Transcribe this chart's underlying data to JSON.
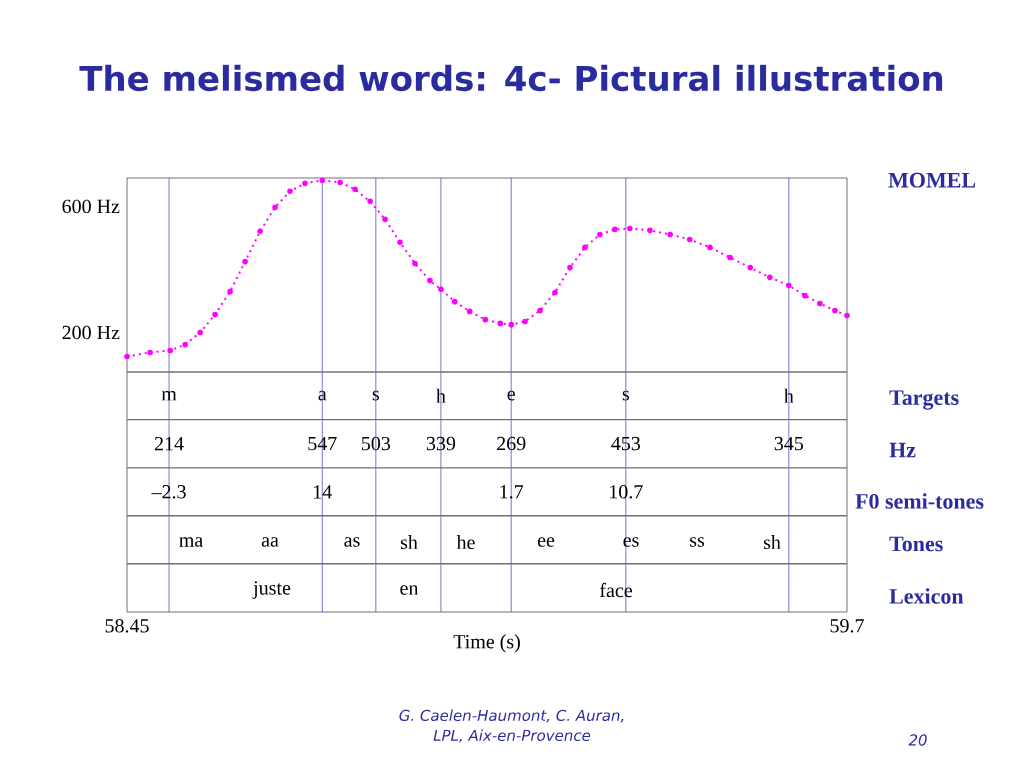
{
  "chart_data": {
    "type": "line",
    "title": "The melismed words: 4c- Pictural illustration",
    "xlabel": "Time (s)",
    "xlim": [
      58.45,
      59.7
    ],
    "ylim": [
      -686,
      690
    ],
    "xticks": [
      58.45,
      59.7
    ],
    "yticks": [
      {
        "value": 200,
        "label": "200 Hz"
      },
      {
        "value": 600,
        "label": "600 Hz"
      }
    ],
    "marker": "circle",
    "line_style": "dotted",
    "series": [
      {
        "name": "MOMEL",
        "color": "#ff00ff",
        "x": [
          58.45,
          58.49,
          58.525,
          58.551,
          58.577,
          58.603,
          58.629,
          58.655,
          58.681,
          58.707,
          58.733,
          58.759,
          58.789,
          58.82,
          58.846,
          58.872,
          58.898,
          58.924,
          58.95,
          58.976,
          58.995,
          59.019,
          59.045,
          59.072,
          59.098,
          59.117,
          59.141,
          59.167,
          59.193,
          59.219,
          59.245,
          59.271,
          59.297,
          59.323,
          59.358,
          59.393,
          59.427,
          59.462,
          59.497,
          59.532,
          59.566,
          59.599,
          59.627,
          59.653,
          59.679,
          59.7
        ],
        "values": [
          124,
          137,
          143,
          162,
          200,
          257,
          330,
          425,
          521,
          597,
          648,
          673,
          683,
          676,
          654,
          616,
          559,
          486,
          419,
          365,
          337,
          298,
          267,
          241,
          229,
          225,
          235,
          270,
          327,
          406,
          470,
          511,
          527,
          530,
          524,
          511,
          495,
          470,
          438,
          406,
          375,
          349,
          317,
          292,
          270,
          254
        ]
      }
    ],
    "ref_lines": [
      {
        "axis": "x",
        "value": 58.523,
        "color": "#5050c0"
      },
      {
        "axis": "x",
        "value": 58.789,
        "color": "#5050c0"
      },
      {
        "axis": "x",
        "value": 58.882,
        "color": "#5050c0"
      },
      {
        "axis": "x",
        "value": 58.995,
        "color": "#5050c0"
      },
      {
        "axis": "x",
        "value": 59.117,
        "color": "#5050c0"
      },
      {
        "axis": "x",
        "value": 59.316,
        "color": "#5050c0"
      },
      {
        "axis": "x",
        "value": 59.599,
        "color": "#5050c0"
      },
      {
        "axis": "y",
        "value": 75,
        "color": "#707070"
      },
      {
        "axis": "y",
        "value": -76,
        "color": "#707070"
      },
      {
        "axis": "y",
        "value": -229,
        "color": "#707070"
      },
      {
        "axis": "y",
        "value": -381,
        "color": "#707070"
      },
      {
        "axis": "y",
        "value": -533,
        "color": "#707070"
      }
    ],
    "annotations": [
      {
        "text": "m",
        "x": 58.523,
        "y": 0
      },
      {
        "text": "a",
        "x": 58.789,
        "y": 0
      },
      {
        "text": "s",
        "x": 58.882,
        "y": 0
      },
      {
        "text": "h",
        "x": 58.995,
        "y": 0
      },
      {
        "text": "e",
        "x": 59.117,
        "y": 0
      },
      {
        "text": "s",
        "x": 59.316,
        "y": 0
      },
      {
        "text": "h",
        "x": 59.599,
        "y": 0
      },
      {
        "text": "214",
        "x": 58.523,
        "y": -152
      },
      {
        "text": "547",
        "x": 58.789,
        "y": -152
      },
      {
        "text": "503",
        "x": 58.882,
        "y": -152
      },
      {
        "text": "339",
        "x": 58.995,
        "y": -152
      },
      {
        "text": "269",
        "x": 59.117,
        "y": -152
      },
      {
        "text": "453",
        "x": 59.316,
        "y": -152
      },
      {
        "text": "345",
        "x": 59.599,
        "y": -152
      },
      {
        "text": "–2.3",
        "x": 58.523,
        "y": -305
      },
      {
        "text": "14",
        "x": 58.789,
        "y": -305
      },
      {
        "text": "1.7",
        "x": 59.117,
        "y": -305
      },
      {
        "text": "10.7",
        "x": 59.316,
        "y": -305
      },
      "ma",
      "aa",
      "as",
      "sh",
      "he",
      "ee",
      "es",
      "ss",
      "sh",
      "juste",
      "en",
      "face",
      "Targets",
      "Hz",
      "F0 semi-tones",
      "Tones",
      "Lexicon",
      "G. Caelen-Haumont, C. Auran,",
      "LPL, Aix-en-Provence",
      "20"
    ]
  }
}
